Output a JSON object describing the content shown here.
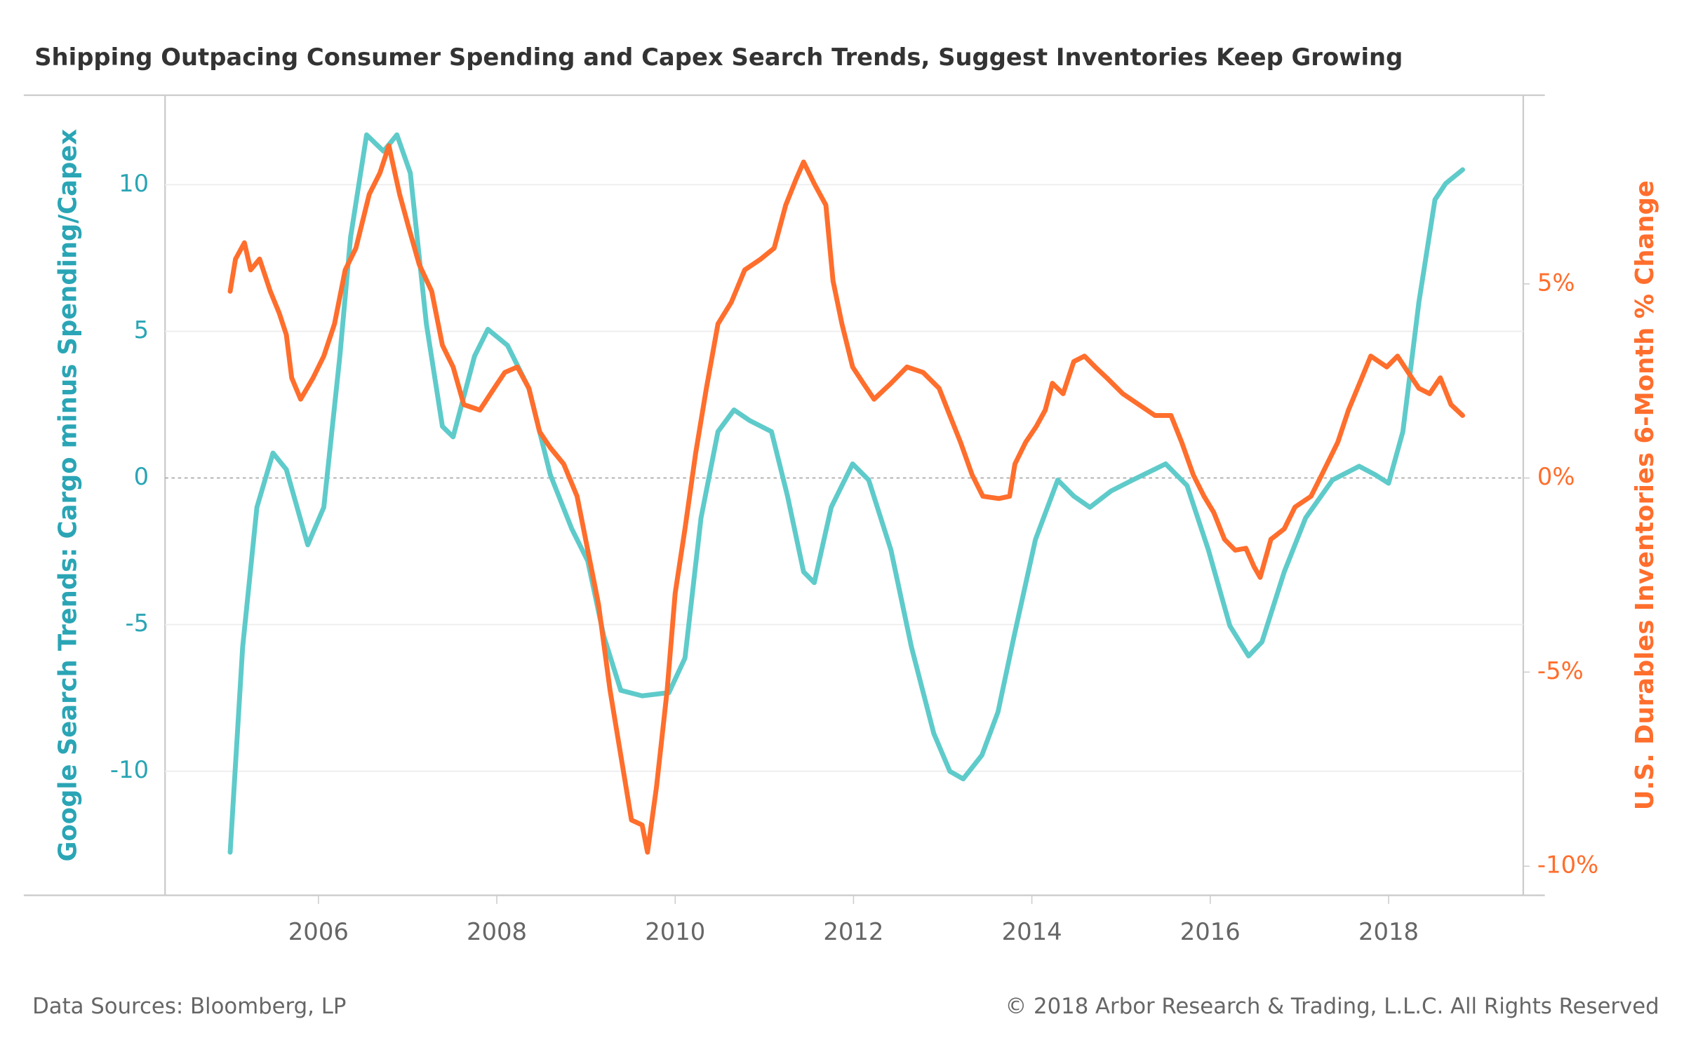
{
  "chart_data": {
    "type": "line",
    "title": "Shipping Outpacing Consumer Spending and Capex Search Trends, Suggest Inventories Keep Growing",
    "y_label": "Google Search Trends: Cargo minus Spending/Capex",
    "y2_label": "U.S. Durables Inventories 6-Month % Change",
    "source": "Data Sources: Bloomberg, LP",
    "copyright": "© 2018 Arbor Research & Trading, L.L.C. All Rights Reserved",
    "xlim": [
      2004.28,
      2019.51
    ],
    "xticks": [
      2006,
      2008,
      2010,
      2012,
      2014,
      2016,
      2018
    ],
    "ylim": [
      -14.23,
      13.05
    ],
    "yticks": [
      -10,
      -5,
      0,
      5,
      10
    ],
    "y2lim": [
      -10.75,
      9.86
    ],
    "y2ticks": [
      {
        "value": -10,
        "label": "-10%"
      },
      {
        "value": -5,
        "label": "-5%"
      },
      {
        "value": 0,
        "label": "0%"
      },
      {
        "value": 5,
        "label": "5%"
      }
    ],
    "grid": true,
    "series": [
      {
        "name": "Google Search Trends: Cargo minus Spending/Capex",
        "color": "#5ecbca",
        "axis": "y",
        "x": [
          2005.01,
          2005.15,
          2005.31,
          2005.49,
          2005.64,
          2005.88,
          2006.06,
          2006.24,
          2006.36,
          2006.54,
          2006.73,
          2006.88,
          2007.03,
          2007.21,
          2007.39,
          2007.51,
          2007.75,
          2007.9,
          2008.12,
          2008.36,
          2008.6,
          2008.84,
          2009.02,
          2009.2,
          2009.39,
          2009.63,
          2009.93,
          2010.11,
          2010.29,
          2010.48,
          2010.66,
          2010.84,
          2011.08,
          2011.26,
          2011.44,
          2011.56,
          2011.75,
          2011.99,
          2012.17,
          2012.42,
          2012.65,
          2012.9,
          2013.08,
          2013.23,
          2013.44,
          2013.62,
          2013.8,
          2014.04,
          2014.29,
          2014.47,
          2014.65,
          2014.89,
          2015.13,
          2015.5,
          2015.74,
          2015.98,
          2016.22,
          2016.43,
          2016.58,
          2016.83,
          2017.07,
          2017.37,
          2017.67,
          2017.85,
          2018.0,
          2018.16,
          2018.34,
          2018.52,
          2018.64,
          2018.83
        ],
        "values": [
          -12.76,
          -5.77,
          -1.0,
          0.85,
          0.29,
          -2.28,
          -1.0,
          4.15,
          8.2,
          11.7,
          11.14,
          11.7,
          10.4,
          5.26,
          1.76,
          1.4,
          4.15,
          5.07,
          4.52,
          3.05,
          0.11,
          -1.73,
          -2.83,
          -5.4,
          -7.24,
          -7.43,
          -7.32,
          -6.14,
          -1.36,
          1.58,
          2.32,
          1.95,
          1.58,
          -0.62,
          -3.2,
          -3.57,
          -1.0,
          0.48,
          -0.07,
          -2.46,
          -5.77,
          -8.71,
          -10.0,
          -10.26,
          -9.45,
          -7.98,
          -5.4,
          -2.1,
          -0.07,
          -0.62,
          -1.0,
          -0.44,
          -0.07,
          0.48,
          -0.26,
          -2.46,
          -5.04,
          -6.07,
          -5.59,
          -3.2,
          -1.36,
          -0.07,
          0.4,
          0.11,
          -0.18,
          1.58,
          6.0,
          9.49,
          10.04,
          10.51
        ]
      },
      {
        "name": "U.S. Durables Inventories 6-Month % Change",
        "color": "#ff6e2c",
        "axis": "y2",
        "x": [
          2005.01,
          2005.07,
          2005.17,
          2005.24,
          2005.34,
          2005.46,
          2005.56,
          2005.64,
          2005.7,
          2005.8,
          2005.94,
          2006.06,
          2006.18,
          2006.3,
          2006.42,
          2006.57,
          2006.69,
          2006.79,
          2006.91,
          2007.01,
          2007.13,
          2007.27,
          2007.39,
          2007.51,
          2007.63,
          2007.81,
          2007.97,
          2008.09,
          2008.23,
          2008.36,
          2008.48,
          2008.6,
          2008.75,
          2008.9,
          2009.02,
          2009.14,
          2009.27,
          2009.39,
          2009.51,
          2009.63,
          2009.69,
          2009.79,
          2009.91,
          2010.0,
          2010.11,
          2010.23,
          2010.35,
          2010.48,
          2010.63,
          2010.78,
          2010.96,
          2011.11,
          2011.24,
          2011.36,
          2011.44,
          2011.56,
          2011.69,
          2011.77,
          2011.87,
          2011.99,
          2012.11,
          2012.23,
          2012.42,
          2012.6,
          2012.78,
          2012.96,
          2013.08,
          2013.2,
          2013.33,
          2013.45,
          2013.63,
          2013.75,
          2013.81,
          2013.93,
          2014.05,
          2014.15,
          2014.23,
          2014.35,
          2014.47,
          2014.59,
          2014.71,
          2014.84,
          2015.02,
          2015.2,
          2015.38,
          2015.56,
          2015.68,
          2015.81,
          2015.93,
          2016.04,
          2016.16,
          2016.28,
          2016.4,
          2016.49,
          2016.56,
          2016.68,
          2016.83,
          2016.95,
          2017.13,
          2017.25,
          2017.43,
          2017.55,
          2017.7,
          2017.8,
          2017.98,
          2018.1,
          2018.22,
          2018.34,
          2018.46,
          2018.58,
          2018.7,
          2018.83
        ],
        "values": [
          4.81,
          5.64,
          6.06,
          5.36,
          5.64,
          4.81,
          4.25,
          3.69,
          2.58,
          2.03,
          2.58,
          3.14,
          3.97,
          5.36,
          5.92,
          7.31,
          7.86,
          8.56,
          7.31,
          6.47,
          5.5,
          4.81,
          3.42,
          2.86,
          1.89,
          1.75,
          2.31,
          2.72,
          2.86,
          2.31,
          1.19,
          0.78,
          0.36,
          -0.47,
          -1.86,
          -3.25,
          -5.47,
          -7.14,
          -8.81,
          -8.94,
          -9.64,
          -7.97,
          -5.47,
          -2.97,
          -1.31,
          0.64,
          2.31,
          3.97,
          4.53,
          5.36,
          5.64,
          5.92,
          7.03,
          7.72,
          8.14,
          7.58,
          7.03,
          5.08,
          3.97,
          2.86,
          2.44,
          2.03,
          2.44,
          2.86,
          2.72,
          2.31,
          1.61,
          0.92,
          0.08,
          -0.47,
          -0.53,
          -0.47,
          0.36,
          0.92,
          1.33,
          1.75,
          2.44,
          2.17,
          3.0,
          3.14,
          2.86,
          2.58,
          2.17,
          1.89,
          1.61,
          1.61,
          0.92,
          0.08,
          -0.47,
          -0.89,
          -1.58,
          -1.86,
          -1.81,
          -2.28,
          -2.56,
          -1.58,
          -1.31,
          -0.75,
          -0.47,
          0.08,
          0.92,
          1.75,
          2.58,
          3.14,
          2.86,
          3.14,
          2.72,
          2.31,
          2.17,
          2.58,
          1.89,
          1.61
        ]
      }
    ]
  }
}
